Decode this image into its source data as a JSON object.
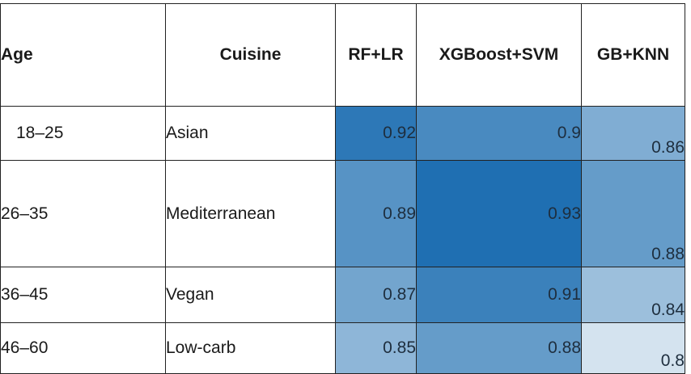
{
  "table": {
    "headers": [
      "Age",
      "Cuisine",
      "RF+LR",
      "XGBoost+SVM",
      "GB+KNN"
    ],
    "rows": [
      {
        "age": "18–25",
        "cuisine": "Asian",
        "rf_lr": "0.92",
        "xgb_svm": "0.9",
        "gb_knn": "0.86"
      },
      {
        "age": "26–35",
        "cuisine": "Mediterranean",
        "rf_lr": "0.89",
        "xgb_svm": "0.93",
        "gb_knn": "0.88"
      },
      {
        "age": "36–45",
        "cuisine": "Vegan",
        "rf_lr": "0.87",
        "xgb_svm": "0.91",
        "gb_knn": "0.84"
      },
      {
        "age": "46–60",
        "cuisine": "Low-carb",
        "rf_lr": "0.85",
        "xgb_svm": "0.88",
        "gb_knn": "0.8"
      }
    ]
  },
  "heatmap": {
    "color_high": "#1f6fb2",
    "color_low": "#d4e3ef",
    "min": 0.8,
    "max": 0.93
  }
}
